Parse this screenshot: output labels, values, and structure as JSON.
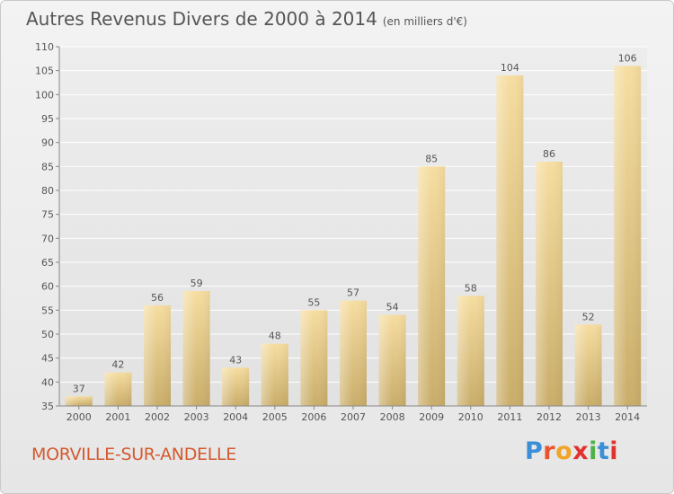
{
  "header": {
    "title": "Autres Revenus Divers de 2000 à 2014",
    "subtitle": "(en milliers d'€)"
  },
  "location": "MORVILLE-SUR-ANDELLE",
  "logo": {
    "text": "Proxiti",
    "letters": [
      "P",
      "r",
      "o",
      "x",
      "i",
      "t",
      "i"
    ],
    "colors": [
      "#3a8fd8",
      "#e8542b",
      "#f0a526",
      "#e0332f",
      "#4fb04a",
      "#3a8fd8",
      "#e0332f"
    ]
  },
  "colors": {
    "bar_light": "#f6dda0",
    "bar_dark": "#c9ad6a",
    "text": "#555555",
    "grid": "#ffffff"
  },
  "chart_data": {
    "type": "bar",
    "title": "Autres Revenus Divers de 2000 à 2014",
    "subtitle": "(en milliers d'€)",
    "categories": [
      "2000",
      "2001",
      "2002",
      "2003",
      "2004",
      "2005",
      "2006",
      "2007",
      "2008",
      "2009",
      "2010",
      "2011",
      "2012",
      "2013",
      "2014"
    ],
    "values": [
      37,
      42,
      56,
      59,
      43,
      48,
      55,
      57,
      54,
      85,
      58,
      104,
      86,
      52,
      106
    ],
    "ylim": [
      35,
      110
    ],
    "yticks": [
      35,
      40,
      45,
      50,
      55,
      60,
      65,
      70,
      75,
      80,
      85,
      90,
      95,
      100,
      105,
      110
    ],
    "grid": true,
    "legend": "none"
  }
}
